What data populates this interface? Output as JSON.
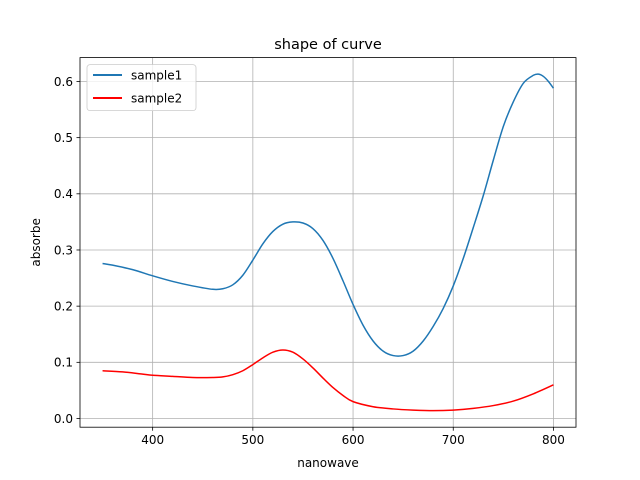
{
  "chart_data": {
    "type": "line",
    "title": "shape of curve",
    "xlabel": "nanowave",
    "ylabel": "absorbe",
    "xlim": [
      327.5,
      822.5
    ],
    "ylim": [
      -0.0155,
      0.6425
    ],
    "xticks": [
      400,
      500,
      600,
      700,
      800
    ],
    "yticks": [
      0.0,
      0.1,
      0.2,
      0.3,
      0.4,
      0.5,
      0.6
    ],
    "xtick_labels": [
      "400",
      "500",
      "600",
      "700",
      "800"
    ],
    "ytick_labels": [
      "0.0",
      "0.1",
      "0.2",
      "0.3",
      "0.4",
      "0.5",
      "0.6"
    ],
    "grid": true,
    "legend_position": "top-left",
    "series": [
      {
        "name": "sample1",
        "color": "#1f77b4",
        "x": [
          350,
          360,
          380,
          400,
          420,
          440,
          460,
          470,
          480,
          490,
          500,
          510,
          520,
          530,
          540,
          550,
          560,
          570,
          580,
          590,
          600,
          610,
          620,
          630,
          640,
          650,
          660,
          670,
          680,
          690,
          700,
          710,
          720,
          730,
          740,
          750,
          760,
          770,
          780,
          785,
          790,
          795,
          800
        ],
        "y": [
          0.276,
          0.273,
          0.265,
          0.254,
          0.244,
          0.236,
          0.23,
          0.231,
          0.238,
          0.255,
          0.282,
          0.311,
          0.333,
          0.346,
          0.35,
          0.348,
          0.338,
          0.317,
          0.285,
          0.245,
          0.203,
          0.166,
          0.138,
          0.12,
          0.112,
          0.112,
          0.12,
          0.138,
          0.164,
          0.196,
          0.236,
          0.285,
          0.34,
          0.397,
          0.46,
          0.52,
          0.564,
          0.597,
          0.611,
          0.613,
          0.609,
          0.6,
          0.588
        ]
      },
      {
        "name": "sample2",
        "color": "#ff0000",
        "x": [
          350,
          370,
          390,
          400,
          420,
          440,
          460,
          470,
          480,
          490,
          500,
          510,
          520,
          530,
          540,
          550,
          560,
          570,
          580,
          590,
          600,
          620,
          640,
          660,
          680,
          700,
          720,
          740,
          760,
          780,
          800
        ],
        "y": [
          0.085,
          0.083,
          0.079,
          0.077,
          0.075,
          0.073,
          0.073,
          0.074,
          0.078,
          0.085,
          0.096,
          0.108,
          0.118,
          0.122,
          0.118,
          0.106,
          0.09,
          0.072,
          0.055,
          0.041,
          0.03,
          0.021,
          0.017,
          0.015,
          0.014,
          0.015,
          0.018,
          0.023,
          0.031,
          0.044,
          0.06
        ]
      }
    ]
  }
}
